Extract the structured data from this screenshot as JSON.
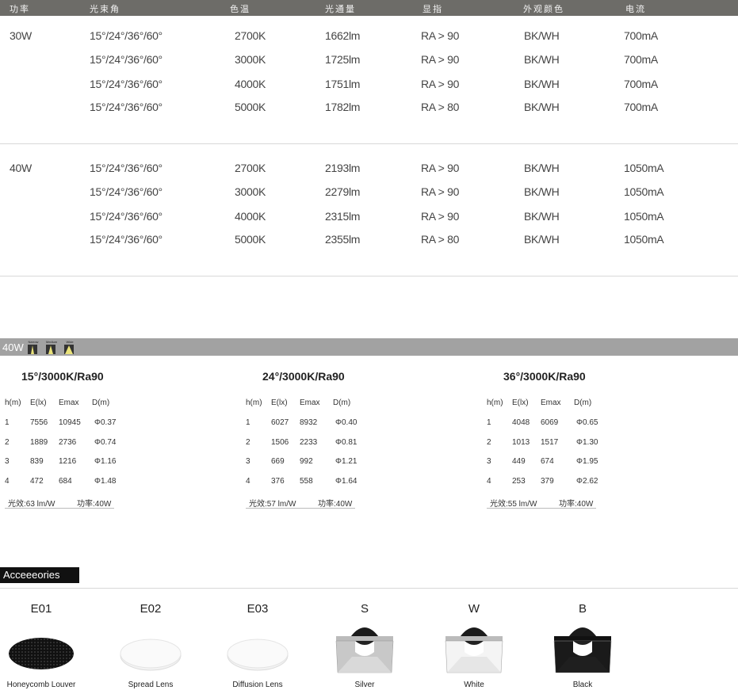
{
  "header": [
    "功率",
    "光束角",
    "色温",
    "光通量",
    "显指",
    "外观颜色",
    "电流"
  ],
  "spec_groups": [
    {
      "power": "30W",
      "rows": [
        [
          "15°/24°/36°/60°",
          "2700K",
          "1662lm",
          "RA > 90",
          "BK/WH",
          "700mA"
        ],
        [
          "15°/24°/36°/60°",
          "3000K",
          "1725lm",
          "RA > 90",
          "BK/WH",
          "700mA"
        ],
        [
          "15°/24°/36°/60°",
          "4000K",
          "1751lm",
          "RA > 90",
          "BK/WH",
          "700mA"
        ],
        [
          "15°/24°/36°/60°",
          "5000K",
          "1782lm",
          "RA > 80",
          "BK/WH",
          "700mA"
        ]
      ]
    },
    {
      "power": "40W",
      "rows": [
        [
          "15°/24°/36°/60°",
          "2700K",
          "2193lm",
          "RA > 90",
          "BK/WH",
          "1050mA"
        ],
        [
          "15°/24°/36°/60°",
          "3000K",
          "2279lm",
          "RA > 90",
          "BK/WH",
          "1050mA"
        ],
        [
          "15°/24°/36°/60°",
          "4000K",
          "2315lm",
          "RA > 90",
          "BK/WH",
          "1050mA"
        ],
        [
          "15°/24°/36°/60°",
          "5000K",
          "2355lm",
          "RA > 80",
          "BK/WH",
          "1050mA"
        ]
      ]
    }
  ],
  "photometric": {
    "bar_label": "40W",
    "beam_icons": [
      "Narrow",
      "Medium",
      "Wide"
    ],
    "columns": [
      "h(m)",
      "E(lx)",
      "Emax",
      "D(m)"
    ],
    "panels": [
      {
        "title": "15°/3000K/Ra90",
        "rows": [
          [
            "1",
            "7556",
            "10945",
            "Φ0.37"
          ],
          [
            "2",
            "1889",
            "2736",
            "Φ0.74"
          ],
          [
            "3",
            "839",
            "1216",
            "Φ1.16"
          ],
          [
            "4",
            "472",
            "684",
            "Φ1.48"
          ]
        ],
        "efficacy": "光效:63 lm/W",
        "power": "功率:40W"
      },
      {
        "title": "24°/3000K/Ra90",
        "rows": [
          [
            "1",
            "6027",
            "8932",
            "Φ0.40"
          ],
          [
            "2",
            "1506",
            "2233",
            "Φ0.81"
          ],
          [
            "3",
            "669",
            "992",
            "Φ1.21"
          ],
          [
            "4",
            "376",
            "558",
            "Φ1.64"
          ]
        ],
        "efficacy": "光效:57 lm/W",
        "power": "功率:40W"
      },
      {
        "title": "36°/3000K/Ra90",
        "rows": [
          [
            "1",
            "4048",
            "6069",
            "Φ0.65"
          ],
          [
            "2",
            "1013",
            "1517",
            "Φ1.30"
          ],
          [
            "3",
            "449",
            "674",
            "Φ1.95"
          ],
          [
            "4",
            "253",
            "379",
            "Φ2.62"
          ]
        ],
        "efficacy": "光效:55 lm/W",
        "power": "功率:40W"
      }
    ]
  },
  "accessories": {
    "title": "Acceeeories",
    "items": [
      {
        "code": "E01",
        "label": "Honeycomb Louver",
        "icon": "honeycomb-louver"
      },
      {
        "code": "E02",
        "label": "Spread Lens",
        "icon": "spread-lens"
      },
      {
        "code": "E03",
        "label": "Diffusion Lens",
        "icon": "diffusion-lens"
      },
      {
        "code": "S",
        "label": "Silver",
        "icon": "reflector",
        "color": "#c8c8c8"
      },
      {
        "code": "W",
        "label": "White",
        "icon": "reflector",
        "color": "#f4f4f4"
      },
      {
        "code": "B",
        "label": "Black",
        "icon": "reflector",
        "color": "#1a1a1a"
      }
    ]
  },
  "colors": {
    "header_bg": "#6d6c68",
    "bar_bg": "#a2a2a2",
    "beam_yellow": "#e9e27a"
  }
}
